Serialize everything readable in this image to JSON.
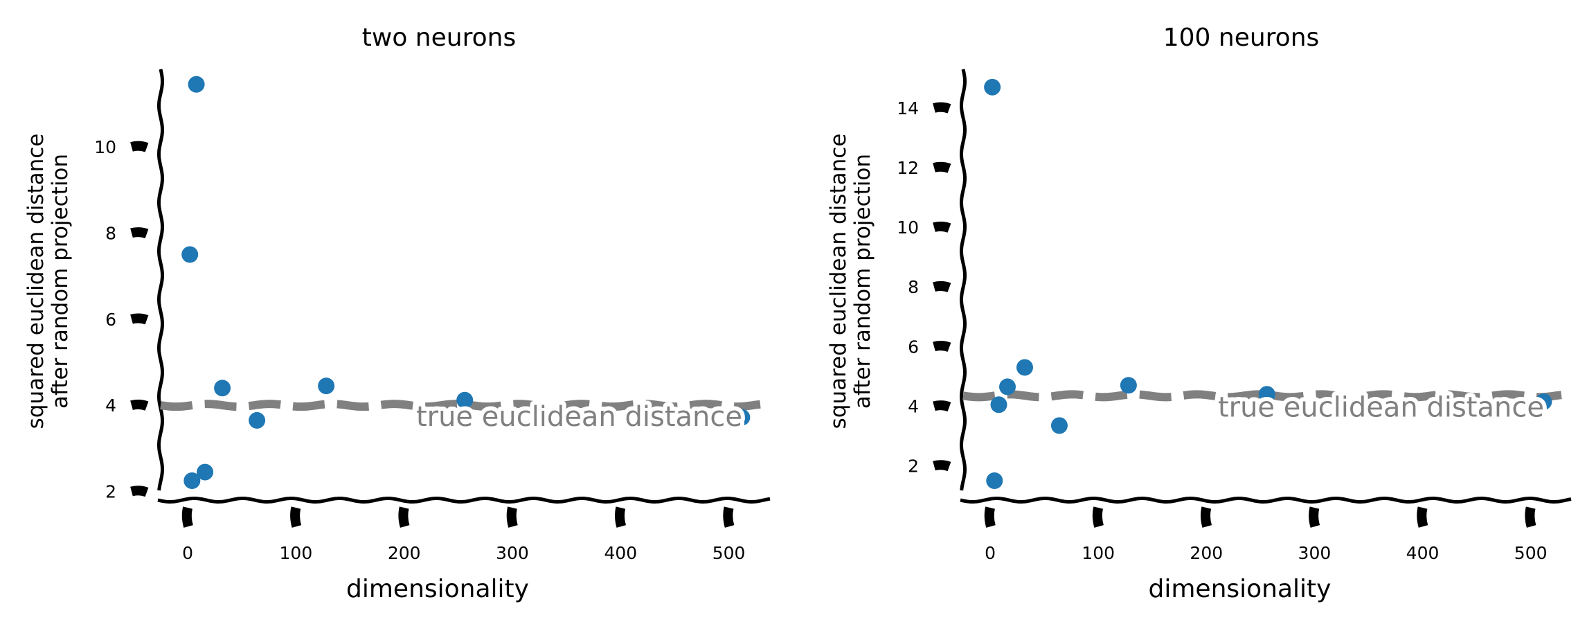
{
  "chart_data": [
    {
      "type": "scatter",
      "title": "two neurons",
      "xlabel": "dimensionality",
      "ylabel_lines": [
        "squared euclidean distance",
        "after random projection"
      ],
      "xlim": [
        -25,
        538
      ],
      "ylim": [
        1.8,
        11.8
      ],
      "xticks": [
        0,
        100,
        200,
        300,
        400,
        500
      ],
      "yticks": [
        2,
        4,
        6,
        8,
        10
      ],
      "point_color": "#1f77b4",
      "points": {
        "x": [
          2,
          4,
          8,
          16,
          32,
          64,
          128,
          256,
          512
        ],
        "y": [
          7.5,
          2.25,
          11.45,
          2.45,
          4.4,
          3.65,
          4.45,
          4.12,
          3.72
        ]
      },
      "reference_line": {
        "y": 4.0,
        "label": "true euclidean distance",
        "color": "#808080"
      }
    },
    {
      "type": "scatter",
      "title": "100 neurons",
      "xlabel": "dimensionality",
      "ylabel_lines": [
        "squared euclidean distance",
        "after random projection"
      ],
      "xlim": [
        -25,
        538
      ],
      "ylim": [
        0.85,
        15.3
      ],
      "xticks": [
        0,
        100,
        200,
        300,
        400,
        500
      ],
      "yticks": [
        2,
        4,
        6,
        8,
        10,
        12,
        14
      ],
      "point_color": "#1f77b4",
      "points": {
        "x": [
          2,
          4,
          8,
          16,
          32,
          64,
          128,
          256,
          512
        ],
        "y": [
          14.7,
          1.5,
          4.05,
          4.65,
          5.3,
          3.35,
          4.7,
          4.4,
          4.15
        ]
      },
      "reference_line": {
        "y": 4.35,
        "label": "true euclidean distance",
        "color": "#808080"
      }
    }
  ]
}
